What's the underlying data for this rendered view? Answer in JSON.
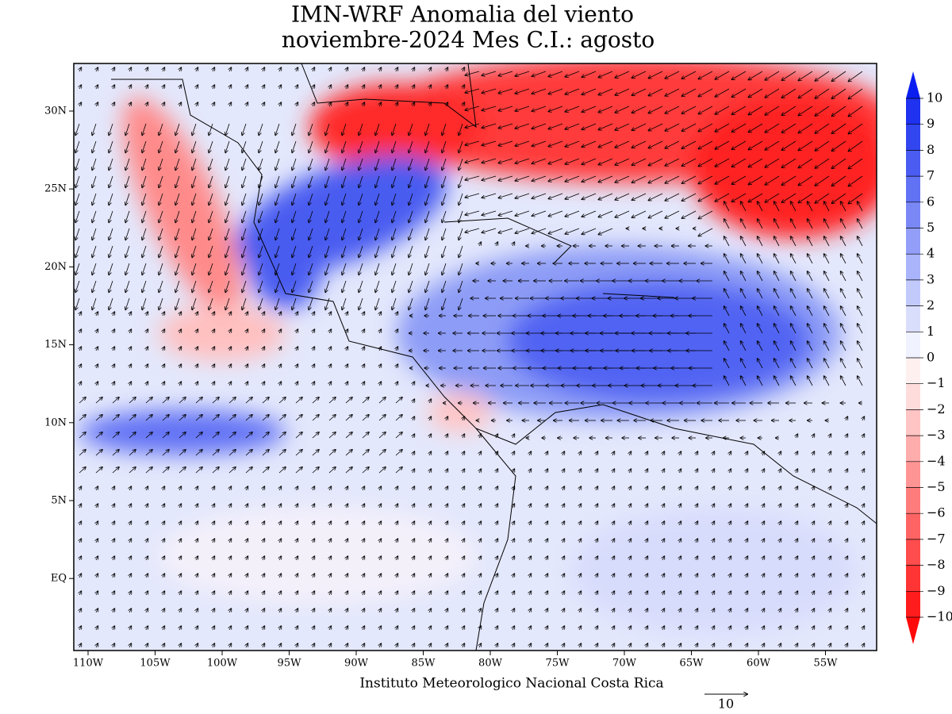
{
  "title": [
    "IMN-WRF Anomalia del viento",
    "noviembre-2024 Mes C.I.: agosto"
  ],
  "lon_labels": [
    "110W",
    "105W",
    "100W",
    "95W",
    "90W",
    "85W",
    "80W",
    "75W",
    "70W",
    "65W",
    "60W",
    "55W"
  ],
  "lat_labels": [
    "30N",
    "25N",
    "20N",
    "15N",
    "10N",
    "5N",
    "EQ"
  ],
  "colorbar": {
    "labels": [
      "10",
      "9",
      "8",
      "7",
      "6",
      "5",
      "4",
      "3",
      "2",
      "1",
      "0",
      "−1",
      "−2",
      "−3",
      "−4",
      "−5",
      "−6",
      "−7",
      "−8",
      "−9",
      "−10"
    ],
    "colors": [
      "#0a1ef0",
      "#1e32f0",
      "#3246f0",
      "#4a5cf2",
      "#6272f4",
      "#7a88f6",
      "#929ef8",
      "#aab4fa",
      "#c2cafc",
      "#dadefd",
      "#f0f2ff",
      "#fff0f0",
      "#ffdcdc",
      "#ffc4c4",
      "#ffacac",
      "#ff9494",
      "#ff7c7c",
      "#ff6464",
      "#ff4c4c",
      "#ff3434",
      "#ff1c1c",
      "#ff0a0a"
    ]
  },
  "footer": "Instituto Meteorologico Nacional Costa Rica",
  "reference_vector": "10"
}
